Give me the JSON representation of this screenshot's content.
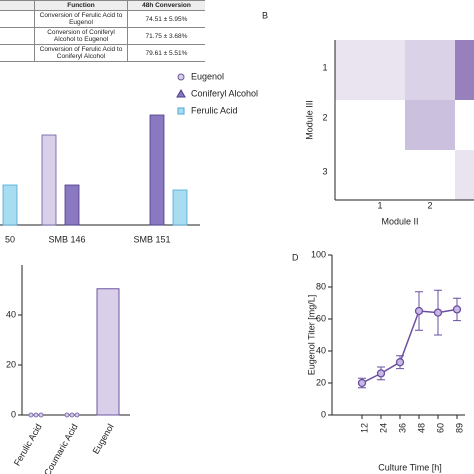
{
  "table": {
    "header": [
      "Function",
      "48h Conversion"
    ],
    "rows": [
      [
        "Conversion of Ferulic Acid to Eugenol",
        "74.51 ± 5.95%"
      ],
      [
        "Conversion of Coniferyl Alcohol to Eugenol",
        "71.75 ± 3.68%"
      ],
      [
        "Conversion of Ferulic Acid to Coniferyl Alcohol",
        "79.61 ± 5.51%"
      ]
    ]
  },
  "chart_data": [
    {
      "type": "bar",
      "categories": [
        "50",
        "SMB 146",
        "SMB 151"
      ],
      "ylim": [
        0,
        100
      ],
      "series": [
        {
          "name": "Eugenol",
          "color": "#d9cfe9",
          "values": [
            null,
            72,
            0
          ]
        },
        {
          "name": "Coniferyl Alcohol",
          "color": "#8a78c0",
          "values": [
            null,
            32,
            88
          ]
        },
        {
          "name": "Ferulic Acid",
          "color": "#a8dcf0",
          "values": [
            32,
            0,
            28
          ]
        }
      ]
    },
    {
      "type": "heatmap",
      "panel_label": "B",
      "x_label": "Module II",
      "y_label": "Module III",
      "x_categories": [
        1,
        2,
        null
      ],
      "y_categories": [
        1,
        2,
        3
      ],
      "color": "#6b4a9e",
      "values": [
        [
          0.15,
          0.25,
          0.7
        ],
        [
          0,
          0.35,
          0
        ],
        [
          0,
          0,
          0.15
        ]
      ]
    },
    {
      "type": "bar",
      "categories": [
        "Ferulic Acid",
        "Coumaric Acid",
        "Eugenol"
      ],
      "values": [
        0,
        0,
        50.5
      ],
      "color": "#d9cfe9",
      "ylim": [
        0,
        60
      ],
      "yticks": [
        0,
        20,
        40
      ]
    },
    {
      "type": "line",
      "panel_label": "D",
      "x_label": "Culture Time [h]",
      "y_label": "Eugenol Titer [mg/L]",
      "categories": [
        12,
        24,
        36,
        48,
        60,
        89
      ],
      "values": [
        20,
        26,
        33,
        65,
        64,
        66
      ],
      "errors": [
        3,
        4,
        4,
        12,
        14,
        7
      ],
      "color": "#6a4fa0",
      "ylim": [
        0,
        100
      ],
      "yticks": [
        0,
        20,
        40,
        60,
        80,
        100
      ]
    }
  ]
}
